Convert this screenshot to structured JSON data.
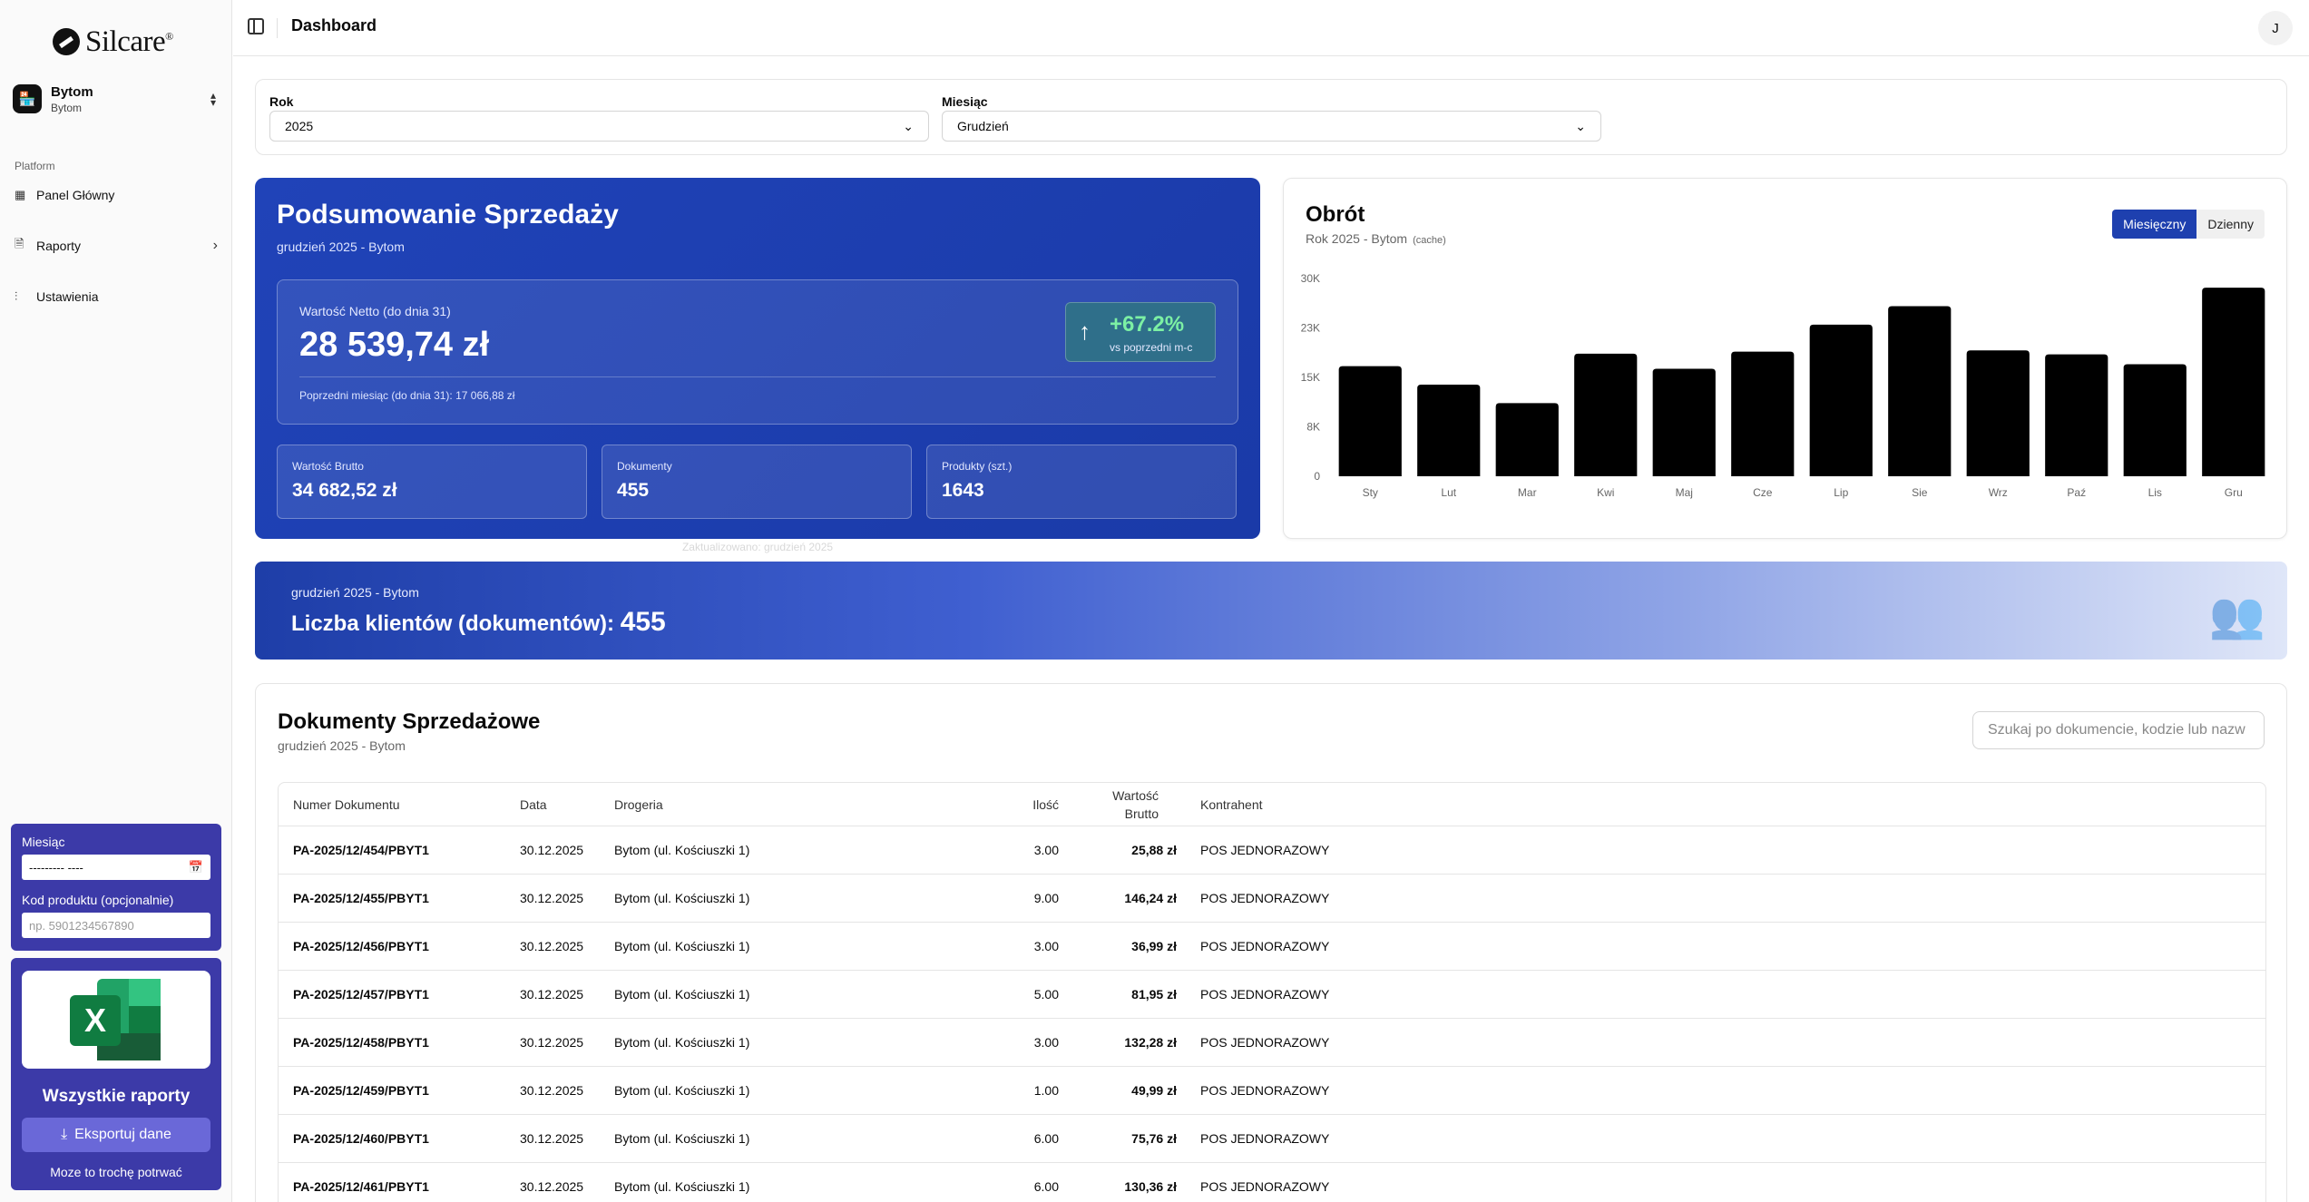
{
  "app": {
    "logo": "Silcare",
    "logo_mark": "®"
  },
  "store": {
    "name": "Bytom",
    "sub": "Bytom"
  },
  "nav": {
    "group": "Platform",
    "items": [
      {
        "label": "Panel Główny"
      },
      {
        "label": "Raporty"
      },
      {
        "label": "Ustawienia"
      }
    ]
  },
  "sidebar_filter": {
    "month_label": "Miesiąc",
    "month_value": "--------- ----",
    "product_label": "Kod produktu (opcjonalnie)",
    "product_placeholder": "np. 5901234567890"
  },
  "export": {
    "title": "Wszystkie raporty",
    "button": "Eksportuj dane",
    "note": "Moze to trochę potrwać"
  },
  "header": {
    "title": "Dashboard",
    "avatar": "J"
  },
  "filters": {
    "year_label": "Rok",
    "year_value": "2025",
    "month_label": "Miesiąc",
    "month_value": "Grudzień"
  },
  "summary": {
    "title": "Podsumowanie Sprzedaży",
    "subtitle": "grudzień 2025 - Bytom",
    "net_label": "Wartość Netto (do dnia 31)",
    "net_value": "28 539,74 zł",
    "prev_text": "Poprzedni miesiąc (do dnia 31): 17 066,88 zł",
    "change_pct": "+67.2%",
    "change_sub": "vs poprzedni m-c",
    "gross_label": "Wartość Brutto",
    "gross_value": "34 682,52 zł",
    "docs_label": "Dokumenty",
    "docs_value": "455",
    "products_label": "Produkty (szt.)",
    "products_value": "1643",
    "updated": "Zaktualizowano: grudzień 2025"
  },
  "turnover": {
    "title": "Obrót",
    "subtitle": "Rok 2025 - Bytom",
    "cache": "(cache)",
    "tab_monthly": "Miesięczny",
    "tab_daily": "Dzienny"
  },
  "chart_data": {
    "type": "bar",
    "categories": [
      "Sty",
      "Lut",
      "Mar",
      "Kwi",
      "Maj",
      "Cze",
      "Lip",
      "Sie",
      "Wrz",
      "Paź",
      "Lis",
      "Gru"
    ],
    "values": [
      16700,
      13900,
      11100,
      18600,
      16300,
      18900,
      23000,
      25800,
      19100,
      18500,
      17000,
      28600
    ],
    "yticks": [
      "0",
      "8K",
      "15K",
      "23K",
      "30K"
    ],
    "ylim": [
      0,
      30000
    ],
    "color": "#000000"
  },
  "customers": {
    "subtitle": "grudzień 2025 - Bytom",
    "label": "Liczba klientów (dokumentów):",
    "value": "455"
  },
  "documents": {
    "title": "Dokumenty Sprzedażowe",
    "subtitle": "grudzień 2025 - Bytom",
    "search_placeholder": "Szukaj po dokumencie, kodzie lub nazw",
    "columns": [
      "Numer Dokumentu",
      "Data",
      "Drogeria",
      "Ilość",
      "Wartość Brutto",
      "Kontrahent"
    ],
    "rows": [
      [
        "PA-2025/12/454/PBYT1",
        "30.12.2025",
        "Bytom (ul. Kościuszki 1)",
        "3.00",
        "25,88 zł",
        "POS JEDNORAZOWY"
      ],
      [
        "PA-2025/12/455/PBYT1",
        "30.12.2025",
        "Bytom (ul. Kościuszki 1)",
        "9.00",
        "146,24 zł",
        "POS JEDNORAZOWY"
      ],
      [
        "PA-2025/12/456/PBYT1",
        "30.12.2025",
        "Bytom (ul. Kościuszki 1)",
        "3.00",
        "36,99 zł",
        "POS JEDNORAZOWY"
      ],
      [
        "PA-2025/12/457/PBYT1",
        "30.12.2025",
        "Bytom (ul. Kościuszki 1)",
        "5.00",
        "81,95 zł",
        "POS JEDNORAZOWY"
      ],
      [
        "PA-2025/12/458/PBYT1",
        "30.12.2025",
        "Bytom (ul. Kościuszki 1)",
        "3.00",
        "132,28 zł",
        "POS JEDNORAZOWY"
      ],
      [
        "PA-2025/12/459/PBYT1",
        "30.12.2025",
        "Bytom (ul. Kościuszki 1)",
        "1.00",
        "49,99 zł",
        "POS JEDNORAZOWY"
      ],
      [
        "PA-2025/12/460/PBYT1",
        "30.12.2025",
        "Bytom (ul. Kościuszki 1)",
        "6.00",
        "75,76 zł",
        "POS JEDNORAZOWY"
      ],
      [
        "PA-2025/12/461/PBYT1",
        "30.12.2025",
        "Bytom (ul. Kościuszki 1)",
        "6.00",
        "130,36 zł",
        "POS JEDNORAZOWY"
      ]
    ]
  },
  "colors": {
    "primary": "#1e40af",
    "sidebar_card": "#3c3aa8",
    "positive": "#7cf0a4"
  }
}
